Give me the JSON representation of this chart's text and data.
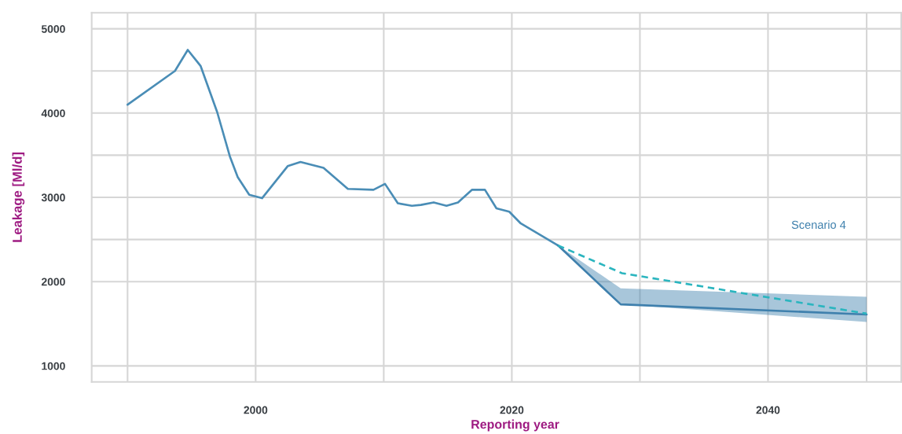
{
  "chart_data": {
    "type": "line",
    "xlabel": "Reporting year",
    "ylabel": "Leakage [Ml/d]",
    "xlim": [
      1987.2,
      2050.4
    ],
    "ylim": [
      810,
      5190
    ],
    "xticks": [
      {
        "value": 1990,
        "label": null
      },
      2000,
      {
        "value": 2010,
        "label": null
      },
      2020,
      {
        "value": 2030,
        "label": null
      },
      2040,
      {
        "value": 2047.7,
        "label": null
      }
    ],
    "yticks": [
      1000,
      2000,
      {
        "value": 2500,
        "label": null
      },
      3000,
      {
        "value": 3500,
        "label": null
      },
      4000,
      {
        "value": 4500,
        "label": null
      },
      5000
    ],
    "grid": true,
    "series": [
      {
        "color": "#4a8db6",
        "x": [
          1990.0,
          1993.7,
          1994.7,
          1995.7,
          1997.0,
          1998.0,
          1998.6,
          1999.5,
          2000.5,
          2002.5,
          2003.5,
          2005.3,
          2007.2,
          2009.2,
          2010.1,
          2011.1,
          2012.2,
          2012.9,
          2013.9,
          2014.9,
          2015.8,
          2016.9,
          2017.9,
          2018.8,
          2019.8,
          2020.7,
          2023.6
        ],
        "values": [
          4100,
          4500,
          4750,
          4560,
          4010,
          3480,
          3240,
          3030,
          2990,
          3370,
          3420,
          3350,
          3100,
          3090,
          3160,
          2930,
          2900,
          2910,
          2940,
          2900,
          2940,
          3090,
          3090,
          2870,
          2830,
          2690,
          2430
        ]
      },
      {
        "name": "Scenario 4",
        "color": "#3f80ad",
        "x": [
          2023.6,
          2028.5,
          2047.7
        ],
        "values": [
          2430,
          1730,
          1610
        ],
        "lower": [
          2430,
          1730,
          1520
        ],
        "upper": [
          2430,
          1920,
          1820
        ]
      },
      {
        "color": "#2bb5bf",
        "line_style": "dashed",
        "x": [
          2023.6,
          2028.6,
          2047.7
        ],
        "values": [
          2430,
          2100,
          1620
        ]
      }
    ]
  }
}
